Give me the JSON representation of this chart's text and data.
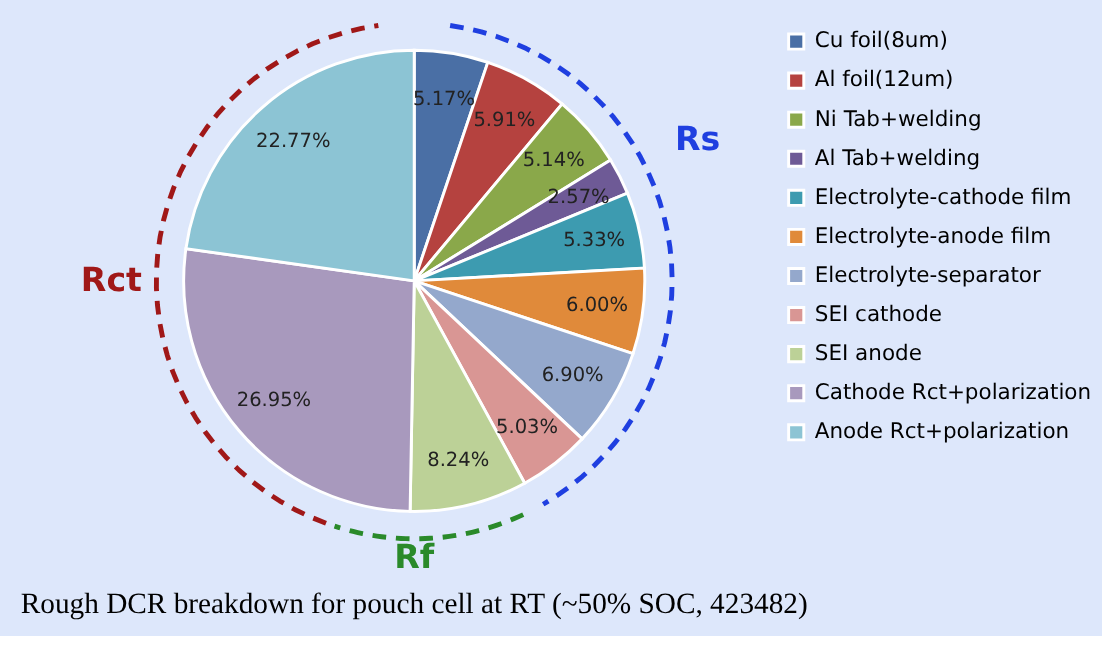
{
  "chart_data": {
    "type": "pie",
    "title": "Rough DCR breakdown for pouch cell at RT (~50% SOC, 423482)",
    "categories": [
      "Cu foil(8um)",
      "Al foil(12um)",
      "Ni Tab+welding",
      "Al Tab+welding",
      "Electrolyte-cathode film",
      "Electrolyte-anode film",
      "Electrolyte-separator",
      "SEI cathode",
      "SEI anode",
      "Cathode Rct+polarization",
      "Anode Rct+polarization"
    ],
    "values": [
      5.17,
      5.91,
      5.14,
      2.57,
      5.33,
      6.0,
      6.9,
      5.03,
      8.24,
      26.95,
      22.77
    ],
    "value_labels": [
      "5.17%",
      "5.91%",
      "5.14%",
      "2.57%",
      "5.33%",
      "6.00%",
      "6.90%",
      "5.03%",
      "8.24%",
      "26.95%",
      "22.77%"
    ],
    "colors": [
      "#4a6fa5",
      "#b5423f",
      "#8aa84a",
      "#6e5a96",
      "#3d9bb0",
      "#e08a3a",
      "#94a8cc",
      "#d99694",
      "#bcd197",
      "#a899bd",
      "#8cc4d4"
    ],
    "annotations": [
      "Rct",
      "Rs",
      "Rf"
    ],
    "legend": "right"
  }
}
